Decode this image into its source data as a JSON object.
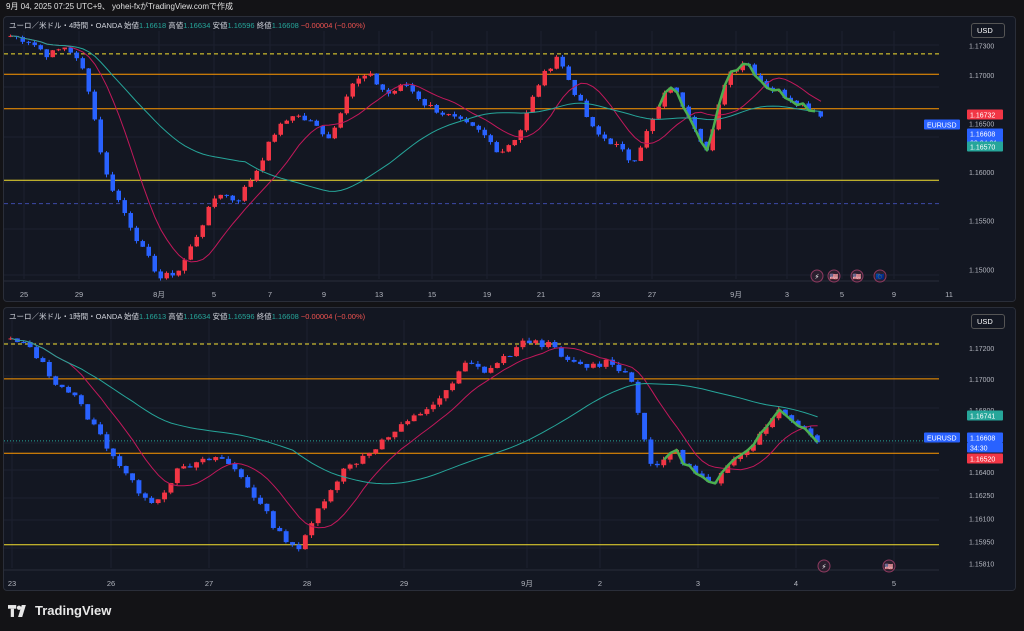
{
  "title_bar": "9月 04, 2025 07:25 UTC+9、 yohei-fxがTradingView.comで作成",
  "brand": "TradingView",
  "colors": {
    "up": "#f23645",
    "down": "#2962ff",
    "ma_fast": "#c2185b",
    "ma_slow": "#26a69a",
    "orange": "#ff9800",
    "yellow": "#f5e02f",
    "green": "#4caf50",
    "pane_bg": "#131722"
  },
  "charts": [
    {
      "id": "top",
      "legend": {
        "symbol": "ユーロ／米ドル・4時間・OANDA",
        "open_label": "始値",
        "open": "1.16618",
        "high_label": "高値",
        "high": "1.16634",
        "low_label": "安値",
        "low": "1.16596",
        "close_label": "終値",
        "close": "1.16608",
        "change": "−0.00004 (−0.00%)"
      },
      "currency_button": "USD",
      "y_ticks": [
        "1.17300",
        "1.17000",
        "1.16500",
        "1.16000",
        "1.15500",
        "1.15000"
      ],
      "x_ticks": [
        "25",
        "29",
        "8月",
        "5",
        "7",
        "9",
        "13",
        "15",
        "19",
        "21",
        "23",
        "27",
        "9月",
        "3",
        "5",
        "9",
        "11"
      ],
      "price_tags": [
        {
          "text": "1.16732",
          "color": "#f23645"
        },
        {
          "text": "EURUSD",
          "color": "#2962ff"
        },
        {
          "text": "1.16608",
          "color": "#2962ff"
        },
        {
          "text": "02:34:31",
          "color": "#2962ff"
        },
        {
          "text": "1.16570",
          "color": "#26a69a"
        }
      ],
      "event_icons": [
        "⚡",
        "🇺🇸",
        "🇺🇸",
        "🇪🇺"
      ]
    },
    {
      "id": "bottom",
      "legend": {
        "symbol": "ユーロ／米ドル・1時間・OANDA",
        "open_label": "始値",
        "open": "1.16613",
        "high_label": "高値",
        "high": "1.16634",
        "low_label": "安値",
        "low": "1.16596",
        "close_label": "終値",
        "close": "1.16608",
        "change": "−0.00004 (−0.00%)"
      },
      "currency_button": "USD",
      "y_ticks": [
        "1.17200",
        "1.17000",
        "1.16800",
        "1.16400",
        "1.16250",
        "1.16100",
        "1.15950",
        "1.15810"
      ],
      "x_ticks": [
        "23",
        "26",
        "27",
        "28",
        "29",
        "9月",
        "2",
        "3",
        "4",
        "5"
      ],
      "price_tags": [
        {
          "text": "1.16741",
          "color": "#26a69a"
        },
        {
          "text": "EURUSD",
          "color": "#2962ff"
        },
        {
          "text": "1.16608",
          "color": "#2962ff"
        },
        {
          "text": "34:30",
          "color": "#2962ff"
        },
        {
          "text": "1.16520",
          "color": "#f23645"
        }
      ],
      "event_icons": [
        "⚡",
        "🇺🇸"
      ]
    }
  ],
  "chart_data": [
    {
      "type": "candlestick",
      "symbol": "EURUSD",
      "timeframe": "4h",
      "ylim": [
        1.149,
        1.1745
      ],
      "x_labels": [
        "25",
        "29",
        "8月",
        "5",
        "7",
        "9",
        "13",
        "15",
        "19",
        "21",
        "23",
        "27",
        "9月",
        "3",
        "5",
        "9",
        "11"
      ],
      "close_path": [
        1.174,
        1.1735,
        1.172,
        1.173,
        1.17,
        1.16,
        1.156,
        1.152,
        1.149,
        1.15,
        1.154,
        1.158,
        1.157,
        1.16,
        1.164,
        1.166,
        1.165,
        1.1635,
        1.169,
        1.17,
        1.168,
        1.169,
        1.167,
        1.166,
        1.165,
        1.164,
        1.162,
        1.164,
        1.169,
        1.172,
        1.168,
        1.164,
        1.163,
        1.161,
        1.165,
        1.169,
        1.166,
        1.162,
        1.17,
        1.1715,
        1.169,
        1.168,
        1.167,
        1.166
      ],
      "horizontal_levels": [
        {
          "price": 1.17215,
          "style": "dashed",
          "color": "#f5e02f"
        },
        {
          "price": 1.17005,
          "style": "solid",
          "color": "#ff9800"
        },
        {
          "price": 1.1665,
          "style": "solid",
          "color": "#ff9800"
        },
        {
          "price": 1.15915,
          "style": "solid",
          "color": "#f5e02f"
        },
        {
          "price": 1.15675,
          "style": "dashed",
          "color": "#3d4aa8"
        }
      ],
      "last_price": 1.16608
    },
    {
      "type": "candlestick",
      "symbol": "EURUSD",
      "timeframe": "1h",
      "ylim": [
        1.1578,
        1.1738
      ],
      "x_labels": [
        "23",
        "26",
        "27",
        "28",
        "29",
        "9月",
        "2",
        "3",
        "4",
        "5"
      ],
      "close_path": [
        1.1725,
        1.172,
        1.17,
        1.169,
        1.167,
        1.165,
        1.163,
        1.162,
        1.164,
        1.1645,
        1.165,
        1.164,
        1.162,
        1.16,
        1.159,
        1.162,
        1.164,
        1.165,
        1.166,
        1.167,
        1.168,
        1.169,
        1.171,
        1.1705,
        1.1715,
        1.1725,
        1.1722,
        1.171,
        1.1708,
        1.1712,
        1.17,
        1.164,
        1.1655,
        1.164,
        1.163,
        1.165,
        1.166,
        1.168,
        1.1672,
        1.1661
      ],
      "horizontal_levels": [
        {
          "price": 1.17225,
          "style": "dashed",
          "color": "#f5e02f"
        },
        {
          "price": 1.17,
          "style": "solid",
          "color": "#ff9800"
        },
        {
          "price": 1.1652,
          "style": "solid",
          "color": "#ff9800"
        },
        {
          "price": 1.1593,
          "style": "solid",
          "color": "#f5e02f"
        },
        {
          "price": 1.166,
          "style": "dotted",
          "color": "#26a69a"
        }
      ],
      "last_price": 1.16608
    }
  ]
}
